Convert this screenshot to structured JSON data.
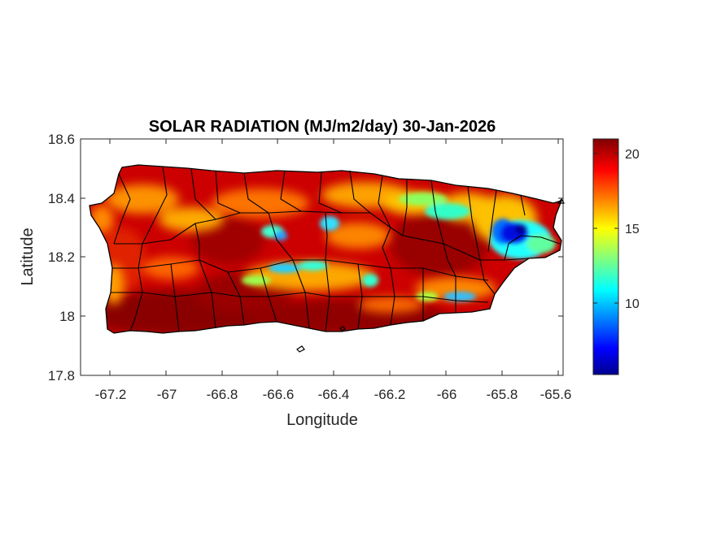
{
  "title": "SOLAR RADIATION (MJ/m2/day) 30-Jan-2026",
  "xlabel": "Longitude",
  "ylabel": "Latitude",
  "chart_data": {
    "type": "heatmap",
    "xlim": [
      -67.3,
      -65.59
    ],
    "ylim": [
      17.8,
      18.6
    ],
    "x_ticks": [
      -67.2,
      -67,
      -66.8,
      -66.6,
      -66.4,
      -66.2,
      -66,
      -65.8,
      -65.6
    ],
    "x_tick_labels": [
      "-67.2",
      "-67",
      "-66.8",
      "-66.6",
      "-66.4",
      "-66.2",
      "-66",
      "-65.8",
      "-65.6"
    ],
    "y_ticks": [
      18.6,
      18.4,
      18.2,
      18,
      17.8
    ],
    "y_tick_labels": [
      "18.6",
      "18.4",
      "18.2",
      "18",
      "17.8"
    ],
    "colorbar": {
      "min": 5,
      "max": 21,
      "colormap": "jet",
      "ticks": [
        20,
        15,
        10
      ],
      "tick_labels": [
        "20",
        "15",
        "10"
      ]
    },
    "grid": false
  }
}
